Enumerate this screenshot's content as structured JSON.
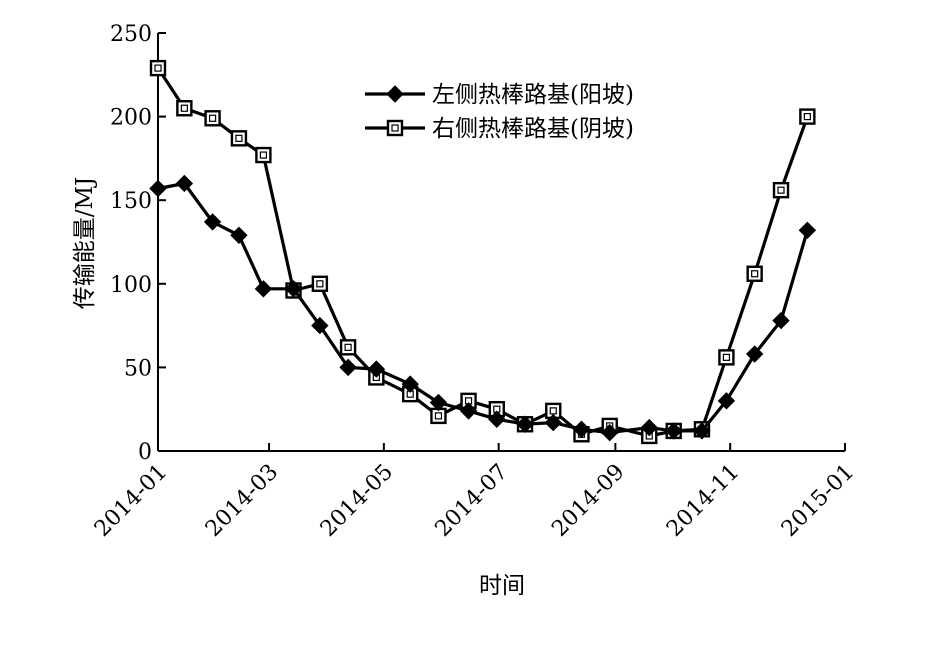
{
  "chart_data": {
    "type": "line",
    "xlabel": "时间",
    "ylabel": "传输能量/MJ",
    "ylim": [
      0,
      250
    ],
    "yticks": [
      0,
      50,
      100,
      150,
      200,
      250
    ],
    "xlim": [
      "2014-01-01",
      "2015-01-01"
    ],
    "xticks": [
      "2014-01",
      "2014-03",
      "2014-05",
      "2014-07",
      "2014-09",
      "2014-11",
      "2015-01"
    ],
    "grid": false,
    "legend_position": "top-center",
    "series": [
      {
        "name": "左侧热棒路基(阳坡)",
        "marker": "diamond",
        "color": "#000000",
        "points": [
          [
            "2014-01-01",
            157
          ],
          [
            "2014-01-15",
            160
          ],
          [
            "2014-01-30",
            137
          ],
          [
            "2014-02-13",
            129
          ],
          [
            "2014-02-26",
            97
          ],
          [
            "2014-03-14",
            97
          ],
          [
            "2014-03-28",
            75
          ],
          [
            "2014-04-12",
            50
          ],
          [
            "2014-04-27",
            49
          ],
          [
            "2014-05-15",
            40
          ],
          [
            "2014-05-30",
            29
          ],
          [
            "2014-06-15",
            24
          ],
          [
            "2014-06-30",
            19
          ],
          [
            "2014-07-15",
            16
          ],
          [
            "2014-07-30",
            17
          ],
          [
            "2014-08-14",
            13
          ],
          [
            "2014-08-29",
            11
          ],
          [
            "2014-09-19",
            14
          ],
          [
            "2014-10-02",
            12
          ],
          [
            "2014-10-17",
            12
          ],
          [
            "2014-10-30",
            30
          ],
          [
            "2014-11-14",
            58
          ],
          [
            "2014-11-28",
            78
          ],
          [
            "2014-12-12",
            132
          ]
        ]
      },
      {
        "name": "右侧热棒路基(阴坡)",
        "marker": "square",
        "color": "#000000",
        "points": [
          [
            "2014-01-01",
            229
          ],
          [
            "2014-01-15",
            205
          ],
          [
            "2014-01-30",
            199
          ],
          [
            "2014-02-13",
            187
          ],
          [
            "2014-02-26",
            177
          ],
          [
            "2014-03-14",
            96
          ],
          [
            "2014-03-28",
            100
          ],
          [
            "2014-04-12",
            62
          ],
          [
            "2014-04-27",
            44
          ],
          [
            "2014-05-15",
            34
          ],
          [
            "2014-05-30",
            21
          ],
          [
            "2014-06-15",
            30
          ],
          [
            "2014-06-30",
            25
          ],
          [
            "2014-07-15",
            16
          ],
          [
            "2014-07-30",
            24
          ],
          [
            "2014-08-14",
            10
          ],
          [
            "2014-08-29",
            15
          ],
          [
            "2014-09-19",
            9
          ],
          [
            "2014-10-02",
            12
          ],
          [
            "2014-10-17",
            13
          ],
          [
            "2014-10-30",
            56
          ],
          [
            "2014-11-14",
            106
          ],
          [
            "2014-11-28",
            156
          ],
          [
            "2014-12-12",
            200
          ]
        ]
      }
    ]
  }
}
